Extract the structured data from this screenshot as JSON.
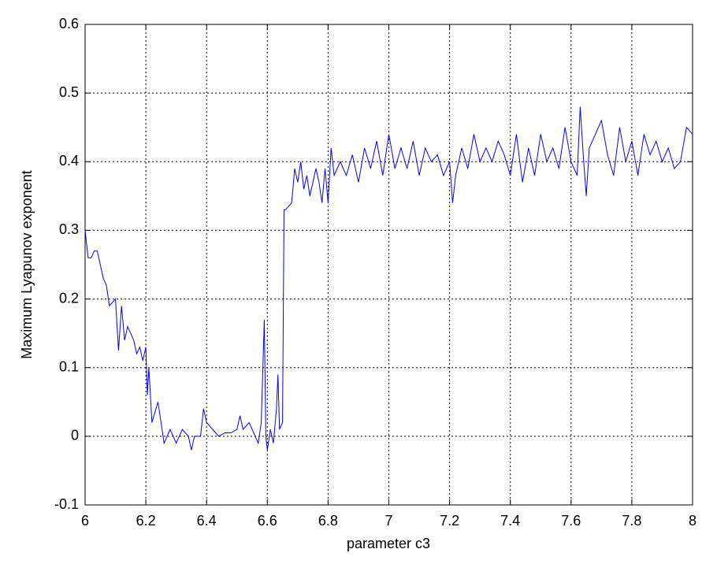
{
  "chart_data": {
    "type": "line",
    "xlabel": "parameter c3",
    "ylabel": "Maximum Lyapunov exponent",
    "x": [
      6.0,
      6.01,
      6.02,
      6.03,
      6.04,
      6.06,
      6.07,
      6.08,
      6.1,
      6.11,
      6.12,
      6.13,
      6.14,
      6.16,
      6.17,
      6.18,
      6.19,
      6.2,
      6.205,
      6.21,
      6.22,
      6.24,
      6.25,
      6.26,
      6.28,
      6.3,
      6.32,
      6.34,
      6.35,
      6.36,
      6.38,
      6.39,
      6.4,
      6.42,
      6.44,
      6.46,
      6.48,
      6.5,
      6.51,
      6.52,
      6.54,
      6.56,
      6.57,
      6.58,
      6.59,
      6.595,
      6.6,
      6.61,
      6.62,
      6.63,
      6.635,
      6.64,
      6.65,
      6.655,
      6.66,
      6.68,
      6.69,
      6.7,
      6.71,
      6.72,
      6.73,
      6.74,
      6.76,
      6.77,
      6.78,
      6.79,
      6.8,
      6.81,
      6.82,
      6.84,
      6.86,
      6.88,
      6.9,
      6.92,
      6.94,
      6.96,
      6.98,
      7.0,
      7.02,
      7.04,
      7.06,
      7.08,
      7.1,
      7.12,
      7.14,
      7.16,
      7.18,
      7.2,
      7.21,
      7.22,
      7.24,
      7.26,
      7.28,
      7.3,
      7.32,
      7.34,
      7.36,
      7.38,
      7.4,
      7.42,
      7.44,
      7.46,
      7.48,
      7.5,
      7.52,
      7.54,
      7.56,
      7.58,
      7.6,
      7.62,
      7.63,
      7.64,
      7.65,
      7.66,
      7.68,
      7.7,
      7.72,
      7.74,
      7.76,
      7.78,
      7.8,
      7.82,
      7.84,
      7.86,
      7.88,
      7.9,
      7.92,
      7.94,
      7.96,
      7.98,
      8.0
    ],
    "series": [
      {
        "color": "#0000ff",
        "values": [
          0.3,
          0.26,
          0.26,
          0.27,
          0.27,
          0.23,
          0.22,
          0.19,
          0.2,
          0.125,
          0.19,
          0.14,
          0.16,
          0.14,
          0.12,
          0.13,
          0.11,
          0.13,
          0.06,
          0.1,
          0.02,
          0.05,
          0.02,
          -0.01,
          0.01,
          -0.01,
          0.01,
          0.0,
          -0.02,
          0.0,
          0.0,
          0.04,
          0.02,
          0.01,
          0.0,
          0.005,
          0.005,
          0.01,
          0.03,
          0.01,
          0.02,
          0.0,
          -0.01,
          0.02,
          0.17,
          0.0,
          -0.02,
          0.01,
          -0.01,
          0.04,
          0.09,
          0.01,
          0.02,
          0.33,
          0.33,
          0.34,
          0.39,
          0.37,
          0.4,
          0.36,
          0.38,
          0.35,
          0.39,
          0.37,
          0.34,
          0.39,
          0.34,
          0.42,
          0.38,
          0.4,
          0.38,
          0.41,
          0.37,
          0.42,
          0.39,
          0.43,
          0.38,
          0.44,
          0.39,
          0.42,
          0.39,
          0.43,
          0.38,
          0.42,
          0.4,
          0.41,
          0.38,
          0.4,
          0.34,
          0.38,
          0.42,
          0.39,
          0.44,
          0.4,
          0.42,
          0.4,
          0.43,
          0.41,
          0.38,
          0.44,
          0.37,
          0.42,
          0.38,
          0.44,
          0.4,
          0.42,
          0.39,
          0.45,
          0.4,
          0.38,
          0.48,
          0.41,
          0.35,
          0.42,
          0.44,
          0.46,
          0.41,
          0.38,
          0.45,
          0.4,
          0.43,
          0.38,
          0.44,
          0.41,
          0.43,
          0.4,
          0.42,
          0.39,
          0.4,
          0.45,
          0.44
        ]
      }
    ],
    "xlim": [
      6,
      8
    ],
    "xticks": [
      6,
      6.2,
      6.4,
      6.6,
      6.8,
      7,
      7.2,
      7.4,
      7.6,
      7.8,
      8
    ],
    "ylim": [
      -0.1,
      0.6
    ],
    "yticks": [
      -0.1,
      0,
      0.1,
      0.2,
      0.3,
      0.4,
      0.5,
      0.6
    ],
    "grid": true
  }
}
